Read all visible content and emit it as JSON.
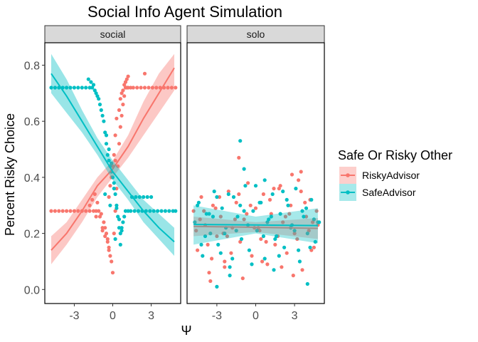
{
  "chart_data": {
    "type": "scatter",
    "title": "Social Info Agent Simulation",
    "xlabel": "Ψ",
    "ylabel": "Percent Risky Choice",
    "xlim": [
      -5.3,
      5.3
    ],
    "ylim": [
      -0.05,
      0.88
    ],
    "x_ticks": [
      -3,
      0,
      3
    ],
    "x_tick_labels": [
      "-3",
      "0",
      "3"
    ],
    "y_ticks": [
      0.0,
      0.2,
      0.4,
      0.6,
      0.8
    ],
    "y_tick_labels": [
      "0.0",
      "0.2",
      "0.4",
      "0.6",
      "0.8"
    ],
    "grid": false,
    "facets": [
      {
        "label": "social",
        "key": "social"
      },
      {
        "label": "solo",
        "key": "solo"
      }
    ],
    "legend": {
      "title": "Safe Or Risky Other",
      "position": "right",
      "items": [
        {
          "label": "RiskyAdvisor",
          "color": "#F8766D"
        },
        {
          "label": "SafeAdvisor",
          "color": "#00BFC4"
        }
      ]
    },
    "series": [
      {
        "name": "RiskyAdvisor",
        "color": "#F8766D",
        "social": {
          "scatter_x": [
            -4.8,
            -4.5,
            -4.2,
            -3.9,
            -3.6,
            -3.3,
            -3.0,
            -2.7,
            -2.4,
            -2.1,
            -1.8,
            -1.5,
            -1.3,
            -1.1,
            -0.9,
            -0.7,
            -0.6,
            -0.5,
            -0.4,
            -0.3,
            -0.2,
            -0.1,
            0.0,
            0.1,
            0.2,
            0.3,
            0.4,
            0.5,
            0.6,
            0.7,
            0.8,
            0.9,
            1.0,
            1.1,
            1.2,
            1.4,
            1.6,
            1.9,
            2.2,
            2.5,
            2.8,
            3.1,
            3.4,
            3.7,
            4.0,
            4.3,
            4.6,
            4.9,
            -1.8,
            -1.6,
            -1.4,
            -1.2,
            -1.0,
            -0.8,
            -0.6,
            -0.4,
            -0.3,
            -0.2,
            -0.1,
            0.0,
            0.1,
            0.2,
            0.3,
            0.5,
            0.6,
            0.7,
            0.8,
            0.9,
            1.0,
            1.1,
            1.2,
            2.5,
            -1.3,
            -0.8,
            -0.3,
            0.2
          ],
          "scatter_y": [
            0.28,
            0.28,
            0.28,
            0.28,
            0.28,
            0.28,
            0.28,
            0.28,
            0.28,
            0.28,
            0.28,
            0.28,
            0.28,
            0.28,
            0.27,
            0.24,
            0.22,
            0.2,
            0.18,
            0.15,
            0.12,
            0.1,
            0.06,
            0.2,
            0.28,
            0.36,
            0.44,
            0.52,
            0.58,
            0.62,
            0.66,
            0.69,
            0.72,
            0.72,
            0.72,
            0.72,
            0.72,
            0.72,
            0.72,
            0.72,
            0.72,
            0.72,
            0.72,
            0.72,
            0.72,
            0.72,
            0.72,
            0.72,
            0.3,
            0.32,
            0.34,
            0.31,
            0.26,
            0.22,
            0.19,
            0.17,
            0.14,
            0.37,
            0.4,
            0.44,
            0.48,
            0.55,
            0.61,
            0.64,
            0.68,
            0.7,
            0.71,
            0.73,
            0.74,
            0.75,
            0.76,
            0.77,
            0.26,
            0.21,
            0.33,
            0.46
          ],
          "fit_x": [
            -4.8,
            -3.6,
            -2.4,
            -1.2,
            0.0,
            1.2,
            2.4,
            3.6,
            4.8
          ],
          "fit_y": [
            0.14,
            0.2,
            0.28,
            0.37,
            0.43,
            0.51,
            0.61,
            0.7,
            0.79
          ],
          "ci_low": [
            0.09,
            0.16,
            0.24,
            0.33,
            0.4,
            0.47,
            0.55,
            0.63,
            0.71
          ],
          "ci_high": [
            0.19,
            0.24,
            0.32,
            0.4,
            0.46,
            0.55,
            0.67,
            0.77,
            0.84
          ]
        },
        "solo": {
          "scatter_x": [
            -4.8,
            -4.5,
            -4.2,
            -3.9,
            -3.6,
            -3.3,
            -3.0,
            -2.7,
            -2.4,
            -2.1,
            -1.8,
            -1.5,
            -1.2,
            -0.9,
            -0.6,
            -0.3,
            0.0,
            0.3,
            0.6,
            0.9,
            1.2,
            1.5,
            1.8,
            2.1,
            2.4,
            2.7,
            3.0,
            3.3,
            3.6,
            3.9,
            4.2,
            4.5,
            4.8,
            -4.6,
            -4.0,
            -3.4,
            -2.8,
            -2.2,
            -1.6,
            -1.0,
            -0.4,
            0.2,
            0.8,
            1.4,
            2.0,
            2.6,
            3.2,
            3.8,
            4.4,
            -4.3,
            -3.7,
            -3.1,
            -2.5,
            -1.9,
            -1.3,
            -0.7,
            -0.1,
            0.5,
            1.1,
            1.7,
            2.3,
            2.9,
            3.5,
            4.1,
            4.7,
            -1.3,
            2.8,
            3.5,
            -3.5,
            0.4,
            1.9,
            -2.4,
            4.3
          ],
          "scatter_y": [
            0.28,
            0.14,
            0.33,
            0.23,
            0.06,
            0.3,
            0.19,
            0.26,
            0.1,
            0.35,
            0.22,
            0.31,
            0.17,
            0.25,
            0.38,
            0.12,
            0.29,
            0.21,
            0.34,
            0.09,
            0.27,
            0.16,
            0.36,
            0.24,
            0.13,
            0.3,
            0.2,
            0.39,
            0.07,
            0.26,
            0.32,
            0.15,
            0.23,
            0.21,
            0.28,
            0.11,
            0.33,
            0.19,
            0.25,
            0.04,
            0.3,
            0.22,
            0.17,
            0.36,
            0.08,
            0.27,
            0.18,
            0.31,
            0.24,
            0.25,
            0.16,
            0.29,
            0.2,
            0.13,
            0.34,
            0.27,
            0.22,
            0.1,
            0.32,
            0.19,
            0.26,
            0.05,
            0.35,
            0.21,
            0.28,
            0.47,
            0.41,
            0.42,
            0.03,
            0.18,
            0.37,
            0.08,
            0.14
          ],
          "fit_x": [
            -4.8,
            0.0,
            4.8
          ],
          "fit_y": [
            0.225,
            0.222,
            0.218
          ],
          "ci_low": [
            0.19,
            0.205,
            0.18
          ],
          "ci_high": [
            0.26,
            0.24,
            0.255
          ]
        }
      },
      {
        "name": "SafeAdvisor",
        "color": "#00BFC4",
        "social": {
          "scatter_x": [
            -4.8,
            -4.5,
            -4.2,
            -3.9,
            -3.6,
            -3.3,
            -3.0,
            -2.7,
            -2.4,
            -2.1,
            -1.8,
            -1.6,
            -1.4,
            -1.2,
            -1.0,
            -0.8,
            -0.6,
            -0.5,
            -0.4,
            -0.3,
            -0.2,
            -0.1,
            0.0,
            0.1,
            0.2,
            0.3,
            0.4,
            0.5,
            0.6,
            0.7,
            0.8,
            0.9,
            1.0,
            1.2,
            1.4,
            1.7,
            2.0,
            2.3,
            2.6,
            2.9,
            3.2,
            3.5,
            3.8,
            4.1,
            4.4,
            4.7,
            4.9,
            -1.9,
            -1.7,
            -1.5,
            -1.3,
            -1.1,
            -0.9,
            -0.7,
            -0.5,
            -0.3,
            -0.1,
            0.1,
            0.3,
            0.5,
            0.7,
            1.5,
            1.8,
            2.1,
            2.4,
            2.7,
            3.0,
            -0.6,
            -0.2,
            0.2,
            0.6
          ],
          "scatter_y": [
            0.72,
            0.72,
            0.72,
            0.72,
            0.72,
            0.72,
            0.72,
            0.72,
            0.72,
            0.72,
            0.72,
            0.72,
            0.71,
            0.69,
            0.66,
            0.62,
            0.56,
            0.52,
            0.48,
            0.46,
            0.44,
            0.42,
            0.4,
            0.38,
            0.34,
            0.3,
            0.26,
            0.22,
            0.2,
            0.21,
            0.24,
            0.26,
            0.28,
            0.28,
            0.28,
            0.28,
            0.28,
            0.28,
            0.28,
            0.28,
            0.28,
            0.28,
            0.28,
            0.28,
            0.28,
            0.28,
            0.28,
            0.75,
            0.74,
            0.73,
            0.7,
            0.68,
            0.64,
            0.6,
            0.55,
            0.5,
            0.45,
            0.36,
            0.29,
            0.25,
            0.22,
            0.33,
            0.33,
            0.33,
            0.33,
            0.33,
            0.33,
            0.34,
            0.3,
            0.18,
            0.16
          ],
          "fit_x": [
            -4.8,
            -3.6,
            -2.4,
            -1.2,
            0.0,
            1.2,
            2.4,
            3.6,
            4.8
          ],
          "fit_y": [
            0.77,
            0.69,
            0.6,
            0.51,
            0.42,
            0.35,
            0.28,
            0.22,
            0.17
          ],
          "ci_low": [
            0.7,
            0.63,
            0.56,
            0.48,
            0.39,
            0.32,
            0.24,
            0.18,
            0.12
          ],
          "ci_high": [
            0.84,
            0.75,
            0.64,
            0.54,
            0.46,
            0.39,
            0.32,
            0.27,
            0.22
          ]
        },
        "solo": {
          "scatter_x": [
            -4.7,
            -4.4,
            -4.1,
            -3.8,
            -3.5,
            -3.2,
            -2.9,
            -2.6,
            -2.3,
            -2.0,
            -1.7,
            -1.4,
            -1.1,
            -0.8,
            -0.5,
            -0.2,
            0.1,
            0.4,
            0.7,
            1.0,
            1.3,
            1.6,
            1.9,
            2.2,
            2.5,
            2.8,
            3.1,
            3.4,
            3.7,
            4.0,
            4.3,
            4.6,
            4.9,
            -4.5,
            -3.9,
            -3.3,
            -2.7,
            -2.1,
            -1.5,
            -0.9,
            -0.3,
            0.3,
            0.9,
            1.5,
            2.1,
            2.7,
            3.3,
            3.9,
            4.5,
            -4.2,
            -3.6,
            -3.0,
            -2.4,
            -1.8,
            -1.2,
            -0.6,
            0.0,
            0.6,
            1.2,
            1.8,
            2.4,
            3.0,
            3.6,
            4.2,
            4.8,
            -1.2,
            -0.9,
            0.7,
            -3.0,
            -2.0,
            1.4,
            4.0
          ],
          "scatter_y": [
            0.24,
            0.31,
            0.12,
            0.27,
            0.2,
            0.35,
            0.16,
            0.29,
            0.22,
            0.08,
            0.33,
            0.26,
            0.18,
            0.37,
            0.14,
            0.28,
            0.21,
            0.31,
            0.11,
            0.25,
            0.34,
            0.19,
            0.27,
            0.15,
            0.3,
            0.23,
            0.36,
            0.1,
            0.26,
            0.2,
            0.32,
            0.17,
            0.24,
            0.3,
            0.19,
            0.26,
            0.13,
            0.34,
            0.21,
            0.28,
            0.09,
            0.31,
            0.24,
            0.18,
            0.35,
            0.22,
            0.14,
            0.29,
            0.25,
            0.16,
            0.27,
            0.33,
            0.2,
            0.11,
            0.3,
            0.23,
            0.37,
            0.19,
            0.26,
            0.12,
            0.32,
            0.21,
            0.28,
            0.15,
            0.24,
            0.53,
            0.43,
            0.39,
            0.01,
            0.05,
            0.07,
            0.02
          ],
          "fit_x": [
            -4.8,
            0.0,
            4.8
          ],
          "fit_y": [
            0.232,
            0.23,
            0.228
          ],
          "ci_low": [
            0.16,
            0.2,
            0.165
          ],
          "ci_high": [
            0.3,
            0.26,
            0.29
          ]
        }
      }
    ]
  }
}
